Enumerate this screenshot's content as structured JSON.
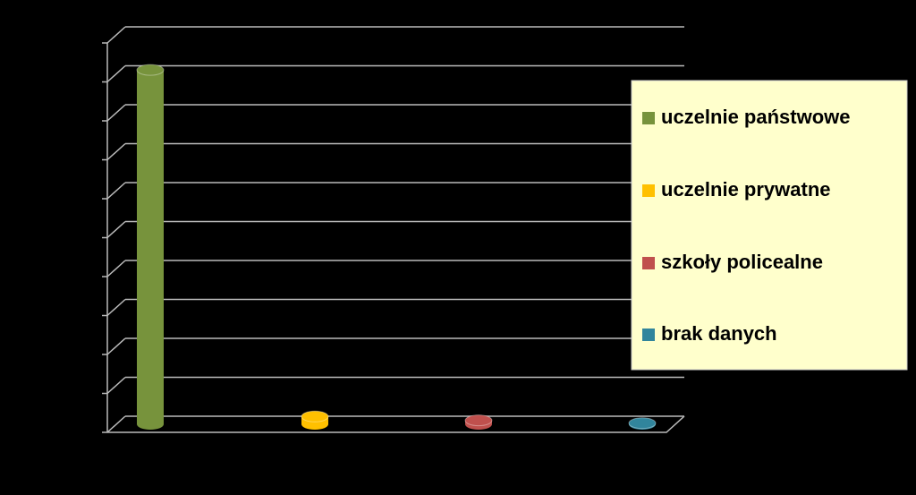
{
  "chart_data": {
    "type": "bar3d",
    "series": [
      {
        "name": "uczelnie państwowe",
        "color": "#77933c",
        "values": [
          91
        ]
      },
      {
        "name": "uczelnie prywatne",
        "color": "#ffc000",
        "values": [
          2
        ]
      },
      {
        "name": "szkoły policealne",
        "color": "#c0504d",
        "values": [
          1
        ]
      },
      {
        "name": "brak danych",
        "color": "#31859c",
        "values": [
          0.3
        ]
      }
    ],
    "ylim": [
      0,
      100
    ],
    "yticks": [
      0,
      10,
      20,
      30,
      40,
      50,
      60,
      70,
      80,
      90,
      100
    ],
    "grid": true,
    "legend": "right"
  }
}
